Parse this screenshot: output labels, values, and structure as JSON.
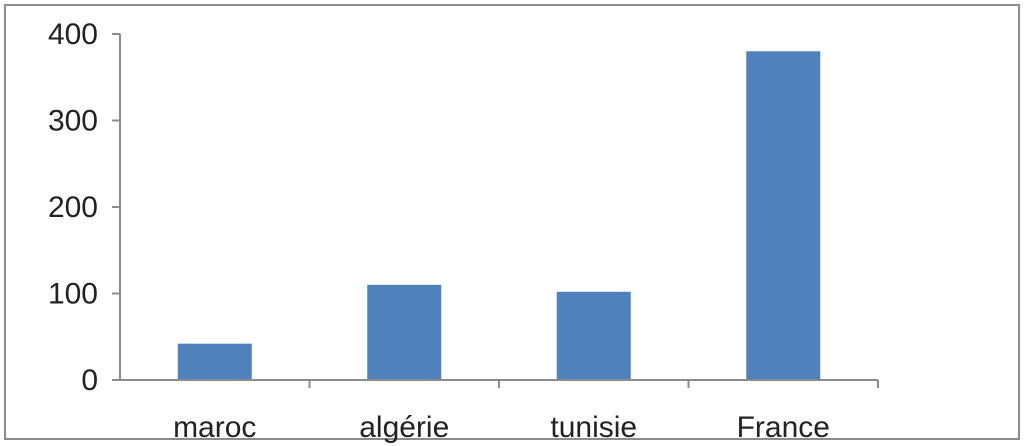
{
  "chart_data": {
    "type": "bar",
    "categories": [
      "maroc",
      "algérie",
      "tunisie",
      "France"
    ],
    "values": [
      42,
      110,
      102,
      380
    ],
    "title": "",
    "xlabel": "",
    "ylabel": "",
    "ylim": [
      0,
      400
    ],
    "yticks": [
      0,
      100,
      200,
      300,
      400
    ],
    "ytick_labels": [
      "0",
      "100",
      "200",
      "300",
      "400"
    ],
    "grid": false,
    "legend": "none",
    "bar_color": "#4f81bd"
  }
}
